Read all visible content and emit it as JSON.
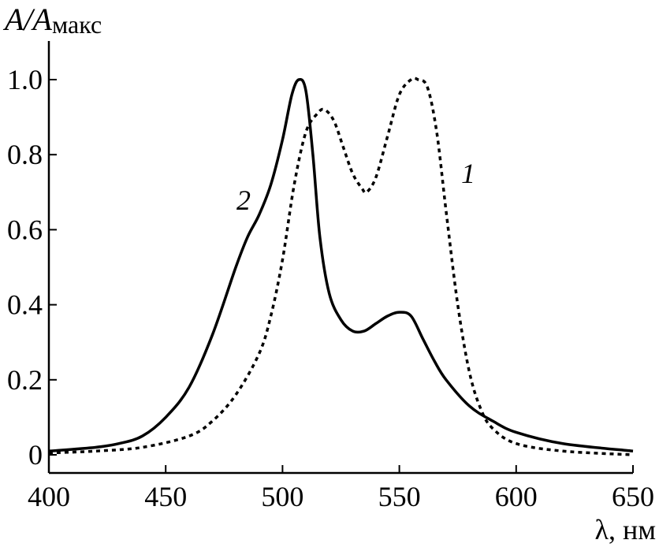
{
  "chart_data": {
    "type": "line",
    "ylabel": {
      "main": "A/A",
      "sub": "макс"
    },
    "xlabel": "λ, нм",
    "xlim": [
      400,
      650
    ],
    "ylim": [
      -0.05,
      1.1
    ],
    "x_ticks": [
      "400",
      "450",
      "500",
      "550",
      "600",
      "650"
    ],
    "y_ticks": [
      "0",
      "0.2",
      "0.4",
      "0.6",
      "0.8",
      "1.0"
    ],
    "series": [
      {
        "name": "1",
        "style": "dotted",
        "color": "#000000",
        "x": [
          400,
          420,
          440,
          460,
          470,
          480,
          490,
          495,
          500,
          505,
          510,
          515,
          518,
          522,
          526,
          530,
          534,
          536,
          540,
          545,
          550,
          555,
          558,
          562,
          566,
          570,
          575,
          580,
          585,
          590,
          600,
          620,
          650
        ],
        "y": [
          0.005,
          0.01,
          0.02,
          0.05,
          0.09,
          0.16,
          0.27,
          0.37,
          0.52,
          0.72,
          0.86,
          0.91,
          0.92,
          0.89,
          0.82,
          0.75,
          0.71,
          0.7,
          0.74,
          0.85,
          0.96,
          1.0,
          1.0,
          0.98,
          0.86,
          0.65,
          0.4,
          0.22,
          0.12,
          0.07,
          0.03,
          0.01,
          0.0
        ]
      },
      {
        "name": "2",
        "style": "solid",
        "color": "#000000",
        "x": [
          400,
          420,
          430,
          440,
          450,
          460,
          470,
          480,
          485,
          490,
          495,
          500,
          504,
          507,
          510,
          513,
          516,
          520,
          525,
          530,
          535,
          540,
          545,
          550,
          555,
          560,
          565,
          570,
          580,
          590,
          600,
          620,
          650
        ],
        "y": [
          0.01,
          0.02,
          0.03,
          0.05,
          0.1,
          0.18,
          0.32,
          0.5,
          0.58,
          0.64,
          0.72,
          0.84,
          0.96,
          1.0,
          0.97,
          0.8,
          0.58,
          0.43,
          0.36,
          0.33,
          0.33,
          0.35,
          0.37,
          0.38,
          0.37,
          0.31,
          0.25,
          0.2,
          0.13,
          0.09,
          0.06,
          0.03,
          0.01
        ]
      }
    ]
  }
}
